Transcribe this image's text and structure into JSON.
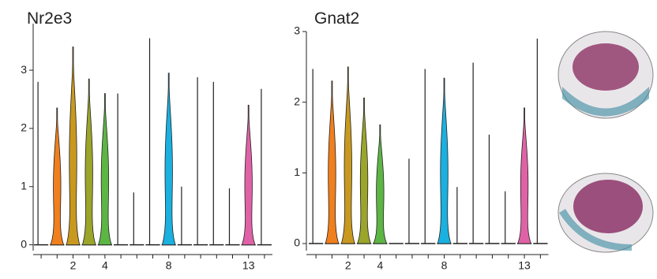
{
  "chart_data": [
    {
      "type": "violin",
      "title": "Nr2e3",
      "categories": [
        null,
        null,
        "2",
        null,
        "4",
        null,
        null,
        null,
        "8",
        null,
        null,
        null,
        null,
        "13",
        null
      ],
      "values": [
        2.8,
        2.35,
        3.4,
        2.85,
        2.6,
        2.6,
        0.9,
        3.55,
        2.95,
        1.0,
        2.88,
        2.8,
        0.97,
        2.4,
        2.68
      ],
      "colors": [
        null,
        "#f07f1d",
        "#c8991e",
        "#9aa52a",
        "#5db544",
        null,
        null,
        null,
        "#1ab0e0",
        null,
        null,
        null,
        null,
        "#e062a6",
        null
      ],
      "ylim": [
        -0.1,
        3.8
      ],
      "yticks": [
        0,
        1,
        2,
        3
      ]
    },
    {
      "type": "violin",
      "title": "Gnat2",
      "categories": [
        null,
        null,
        "2",
        null,
        "4",
        null,
        null,
        null,
        "8",
        null,
        null,
        null,
        null,
        "13",
        null
      ],
      "values": [
        2.47,
        2.3,
        2.5,
        2.06,
        1.68,
        0.0,
        1.2,
        2.47,
        2.34,
        0.8,
        2.56,
        1.54,
        0.74,
        1.92,
        2.9
      ],
      "colors": [
        null,
        "#f07f1d",
        "#c8991e",
        "#9aa52a",
        "#5db544",
        null,
        null,
        null,
        "#1ab0e0",
        null,
        null,
        null,
        null,
        "#e062a6",
        null
      ],
      "ylim": [
        -0.1,
        3.0
      ],
      "yticks": [
        0,
        1,
        2,
        3
      ]
    }
  ]
}
